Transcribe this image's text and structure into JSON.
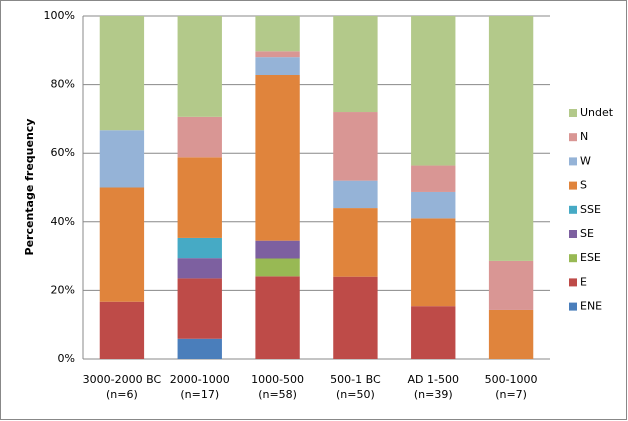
{
  "chart_data": {
    "type": "stacked_bar",
    "y_label": "Percentage frequency",
    "categories": [
      "3000-2000 BC",
      "2000-1000",
      "1000-500",
      "500-1 BC",
      "AD 1-500",
      "500-1000"
    ],
    "category_notes": [
      "(n=6)",
      "(n=17)",
      "(n=58)",
      "(n=50)",
      "(n=39)",
      "(n=7)"
    ],
    "series": [
      {
        "name": "ENE",
        "color": "#4a7ebb",
        "values": [
          0,
          5.9,
          0,
          0,
          0,
          0
        ]
      },
      {
        "name": "E",
        "color": "#be4b48",
        "values": [
          16.7,
          17.6,
          24.1,
          24,
          15.4,
          0
        ]
      },
      {
        "name": "ESE",
        "color": "#98b954",
        "values": [
          0,
          0,
          5.2,
          0,
          0,
          0
        ]
      },
      {
        "name": "SE",
        "color": "#7d60a0",
        "values": [
          0,
          5.9,
          5.2,
          0,
          0,
          0
        ]
      },
      {
        "name": "SSE",
        "color": "#46aac5",
        "values": [
          0,
          5.9,
          0,
          0,
          0,
          0
        ]
      },
      {
        "name": "S",
        "color": "#e0843c",
        "values": [
          33.3,
          23.5,
          48.3,
          20,
          25.6,
          14.3
        ]
      },
      {
        "name": "W",
        "color": "#95b3d7",
        "values": [
          16.7,
          0,
          5.2,
          8,
          7.7,
          0
        ]
      },
      {
        "name": "N",
        "color": "#d99694",
        "values": [
          0,
          11.8,
          1.7,
          20,
          7.7,
          14.3
        ]
      },
      {
        "name": "Undet",
        "color": "#b3c98a",
        "values": [
          33.3,
          29.4,
          10.3,
          28,
          43.6,
          71.4
        ]
      }
    ],
    "ylim": [
      0,
      100
    ],
    "yticks": [
      {
        "value": 0,
        "label": "0%"
      },
      {
        "value": 20,
        "label": "20%"
      },
      {
        "value": 40,
        "label": "40%"
      },
      {
        "value": 60,
        "label": "60%"
      },
      {
        "value": 80,
        "label": "80%"
      },
      {
        "value": 100,
        "label": "100%"
      }
    ],
    "grid": true,
    "legend": "right"
  }
}
